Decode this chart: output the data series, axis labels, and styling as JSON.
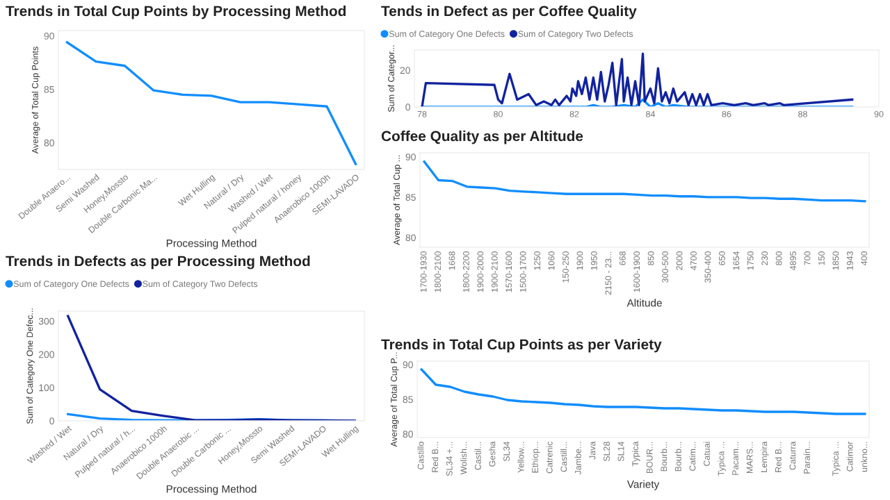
{
  "chart_data": [
    {
      "type": "line",
      "title": "Trends in Total Cup Points by Processing Method",
      "xlabel": "Processing Method",
      "ylabel": "Average of Total Cup Points",
      "categories": [
        "Double Anaero...",
        "Semi Washed",
        "Honey,Mossto",
        "Double Carbonic Ma...",
        null,
        "Wet Hulling",
        "Natural / Dry",
        "Washed / Wet",
        "Pulped natural / honey",
        "Anaerobico 1000h",
        "SEMI-LAVADO"
      ],
      "series": [
        {
          "color": "#118dff",
          "values": [
            89.4,
            87.6,
            87.2,
            84.9,
            84.5,
            84.4,
            83.8,
            83.8,
            83.6,
            83.4,
            78.0
          ]
        }
      ],
      "ylim": [
        77.5,
        90.5
      ],
      "yticks": [
        80,
        85,
        90
      ],
      "grid": false,
      "legend": false
    },
    {
      "type": "line",
      "title": "Tends in Defect as per Coffee Quality",
      "ylabel": "Sum of Categor...",
      "series": [
        {
          "name": "Sum of Category One Defects",
          "color": "#118dff",
          "x": [
            78.0,
            81.0,
            82.3,
            82.5,
            82.7,
            83.0,
            83.3,
            83.6,
            83.8,
            84.0,
            84.2,
            84.4,
            84.6,
            85.0,
            86.0,
            89.3
          ],
          "values": [
            0,
            0,
            0,
            1,
            0,
            0,
            1,
            0,
            4,
            0,
            2,
            0,
            1,
            0,
            0,
            0
          ]
        },
        {
          "name": "Sum of Category Two Defects",
          "color": "#12239e",
          "x": [
            78.0,
            78.1,
            79.9,
            80.0,
            80.1,
            80.3,
            80.5,
            80.8,
            81.0,
            81.2,
            81.4,
            81.5,
            81.6,
            81.8,
            81.9,
            81.95,
            82.05,
            82.1,
            82.2,
            82.3,
            82.4,
            82.5,
            82.6,
            82.7,
            82.8,
            82.9,
            83.0,
            83.1,
            83.25,
            83.3,
            83.4,
            83.5,
            83.6,
            83.7,
            83.8,
            83.85,
            84.0,
            84.1,
            84.2,
            84.3,
            84.4,
            84.5,
            84.6,
            84.7,
            84.9,
            85.0,
            85.1,
            85.2,
            85.3,
            85.4,
            85.5,
            85.6,
            85.9,
            86.2,
            86.5,
            86.7,
            87.0,
            87.1,
            87.4,
            87.5,
            89.3
          ],
          "values": [
            0,
            13,
            12,
            4,
            2,
            18,
            4,
            7,
            1,
            3,
            1,
            4,
            1,
            6,
            3,
            10,
            6,
            14,
            7,
            16,
            4,
            16,
            4,
            19,
            3,
            12,
            24,
            1,
            26,
            3,
            16,
            1,
            14,
            1,
            29,
            3,
            10,
            2,
            21,
            3,
            8,
            2,
            10,
            3,
            8,
            1,
            7,
            1,
            7,
            1,
            7,
            1,
            2,
            1,
            2,
            1,
            2,
            1,
            2,
            1,
            4
          ]
        }
      ],
      "xlim": [
        77.8,
        90.0
      ],
      "xticks": [
        78,
        80,
        82,
        84,
        86,
        88,
        90
      ],
      "ylim": [
        0,
        31
      ],
      "yticks": [
        0,
        20
      ],
      "grid": false,
      "legend": "top left"
    },
    {
      "type": "line",
      "title": "Coffee Quality as per Altitude",
      "xlabel": "Altitude",
      "ylabel": "Average of Total Cup ...",
      "categories": [
        "1700-1930",
        "1800-2100",
        "1668",
        "1800-2200",
        "1900-2000",
        "1900-2100",
        "1570-1600",
        "1500-1700",
        "1250",
        "1060",
        "150-250",
        "1900",
        "1950",
        "2150 - 23...",
        "668",
        "1600-1900",
        "850",
        "300-500",
        "2000",
        "4700",
        "350-400",
        "650",
        "1654",
        "1750",
        "230",
        "800",
        "4895",
        "700",
        "150",
        "1850",
        "1943",
        "400"
      ],
      "series": [
        {
          "color": "#118dff",
          "values": [
            89.4,
            87.1,
            87.0,
            86.3,
            86.2,
            86.1,
            85.8,
            85.7,
            85.6,
            85.5,
            85.4,
            85.4,
            85.4,
            85.4,
            85.4,
            85.3,
            85.2,
            85.2,
            85.1,
            85.1,
            85.0,
            85.0,
            85.0,
            84.9,
            84.9,
            84.8,
            84.8,
            84.7,
            84.6,
            84.6,
            84.6,
            84.5
          ]
        }
      ],
      "ylim": [
        78.8,
        90.5
      ],
      "yticks": [
        80,
        85,
        90
      ],
      "grid": false,
      "legend": false
    },
    {
      "type": "line",
      "title": "Trends in Defects as per Processing Method",
      "xlabel": "Processing Method",
      "ylabel": "Sum of Category One Defec...",
      "categories": [
        "Washed / Wet",
        "Natural / Dry",
        "Pulped natural / h...",
        "Anaerobico 1000h",
        "Double Anaerobic ...",
        "Double Carbonic ...",
        "Honey,Mossto",
        "Semi Washed",
        "SEMI-LAVADO",
        "Wet Hulling"
      ],
      "series": [
        {
          "name": "Sum of Category One Defects",
          "color": "#118dff",
          "values": [
            20,
            7,
            3,
            2,
            2,
            3,
            5,
            2,
            1,
            0
          ]
        },
        {
          "name": "Sum of Category Two Defects",
          "color": "#12239e",
          "values": [
            315,
            95,
            30,
            15,
            2,
            2,
            4,
            2,
            1,
            0
          ]
        }
      ],
      "ylim": [
        0,
        330
      ],
      "yticks": [
        0,
        100,
        200,
        300
      ],
      "grid": false,
      "legend": "top left"
    },
    {
      "type": "line",
      "title": "Trends in Total Cup Points as per Variety",
      "xlabel": "Variety",
      "ylabel": "Average of Total Cup P...",
      "categories": [
        "Castillo",
        "Red B...",
        "SL34 +...",
        "Wolish...",
        "Castil...",
        "Gesha",
        "SL34",
        "Yellow...",
        "Ethiop...",
        "Catrenic",
        "Castill...",
        "Jambe...",
        "Java",
        "SL28",
        "SL14",
        "Typica",
        "BOUR...",
        "Bourb...",
        "Bourb...",
        "Catim...",
        "Catuai",
        "Typica ...",
        "Pacam...",
        "MARS...",
        "Lempira",
        "Red B...",
        "Caturra",
        "Paraín...",
        null,
        "Typica ...",
        "Catimor",
        "unkno..."
      ],
      "series": [
        {
          "color": "#118dff",
          "values": [
            89.3,
            87.1,
            86.8,
            86.1,
            85.7,
            85.4,
            84.9,
            84.7,
            84.6,
            84.5,
            84.3,
            84.2,
            84.0,
            83.9,
            83.9,
            83.9,
            83.8,
            83.7,
            83.7,
            83.6,
            83.5,
            83.4,
            83.4,
            83.3,
            83.2,
            83.2,
            83.2,
            83.1,
            83.0,
            82.9,
            82.9,
            82.9
          ]
        }
      ],
      "ylim": [
        79.5,
        90.5
      ],
      "yticks": [
        80,
        85,
        90
      ],
      "grid": false,
      "legend": false
    }
  ]
}
